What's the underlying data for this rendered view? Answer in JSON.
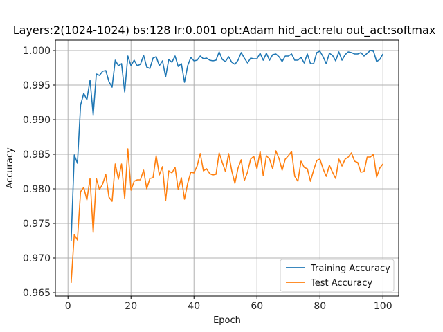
{
  "chart_data": {
    "type": "line",
    "title": "Layers:2(1024-1024) bs:128 lr:0.001 opt:Adam hid_act:relu out_act:softmax",
    "xlabel": "Epoch",
    "ylabel": "Accuracy",
    "xlim": [
      -4,
      105
    ],
    "ylim": [
      0.9645,
      1.0015
    ],
    "xticks": [
      0,
      20,
      40,
      60,
      80,
      100
    ],
    "yticks": [
      0.965,
      0.97,
      0.975,
      0.98,
      0.985,
      0.99,
      0.995,
      1.0
    ],
    "grid": true,
    "legend_position": "lower right",
    "x": [
      1,
      2,
      3,
      4,
      5,
      6,
      7,
      8,
      9,
      10,
      11,
      12,
      13,
      14,
      15,
      16,
      17,
      18,
      19,
      20,
      21,
      22,
      23,
      24,
      25,
      26,
      27,
      28,
      29,
      30,
      31,
      32,
      33,
      34,
      35,
      36,
      37,
      38,
      39,
      40,
      41,
      42,
      43,
      44,
      45,
      46,
      47,
      48,
      49,
      50,
      51,
      52,
      53,
      54,
      55,
      56,
      57,
      58,
      59,
      60,
      61,
      62,
      63,
      64,
      65,
      66,
      67,
      68,
      69,
      70,
      71,
      72,
      73,
      74,
      75,
      76,
      77,
      78,
      79,
      80,
      81,
      82,
      83,
      84,
      85,
      86,
      87,
      88,
      89,
      90,
      91,
      92,
      93,
      94,
      95,
      96,
      97,
      98,
      99,
      100
    ],
    "series": [
      {
        "name": "Training Accuracy",
        "color": "#1f77b4",
        "values": [
          0.9725,
          0.9849,
          0.9837,
          0.9921,
          0.9938,
          0.9929,
          0.9957,
          0.9907,
          0.9966,
          0.9964,
          0.997,
          0.9971,
          0.9955,
          0.9947,
          0.9986,
          0.9978,
          0.9981,
          0.994,
          0.9992,
          0.9978,
          0.9986,
          0.9978,
          0.998,
          0.9993,
          0.9976,
          0.9974,
          0.9989,
          0.9991,
          0.9978,
          0.9985,
          0.9962,
          0.9987,
          0.9983,
          0.9992,
          0.9977,
          0.9981,
          0.9954,
          0.9978,
          0.999,
          0.9985,
          0.9986,
          0.9992,
          0.9988,
          0.9989,
          0.9986,
          0.9985,
          0.9986,
          0.9998,
          0.9987,
          0.9984,
          0.9991,
          0.9983,
          0.998,
          0.9986,
          0.9997,
          0.9989,
          0.9982,
          0.9989,
          0.9988,
          0.9988,
          0.9996,
          0.9986,
          0.9996,
          0.9986,
          0.9994,
          0.9995,
          0.9991,
          0.9984,
          0.9992,
          0.9992,
          0.9995,
          0.9986,
          0.9986,
          0.999,
          0.9982,
          0.9995,
          0.9981,
          0.9981,
          0.9997,
          0.9999,
          0.9991,
          0.9981,
          0.9996,
          0.9993,
          0.9985,
          0.9998,
          0.9986,
          0.9994,
          0.9998,
          0.9997,
          0.9995,
          0.9995,
          0.9997,
          0.9992,
          0.9996,
          1.0,
          0.9999,
          0.9984,
          0.9987,
          0.9995
        ]
      },
      {
        "name": "Test Accuracy",
        "color": "#ff7f0e",
        "values": [
          0.9664,
          0.9734,
          0.9726,
          0.9796,
          0.9802,
          0.9784,
          0.9815,
          0.9737,
          0.9815,
          0.9799,
          0.9807,
          0.9821,
          0.9788,
          0.9782,
          0.9836,
          0.9814,
          0.9836,
          0.9786,
          0.9858,
          0.9798,
          0.9811,
          0.9813,
          0.9813,
          0.9827,
          0.98,
          0.9815,
          0.9816,
          0.9848,
          0.982,
          0.9832,
          0.9783,
          0.9826,
          0.9823,
          0.9831,
          0.9799,
          0.9816,
          0.9785,
          0.9808,
          0.9824,
          0.9823,
          0.9833,
          0.9851,
          0.9826,
          0.9829,
          0.9822,
          0.982,
          0.9821,
          0.9852,
          0.9838,
          0.9825,
          0.9851,
          0.9826,
          0.9808,
          0.983,
          0.9842,
          0.9812,
          0.9824,
          0.9843,
          0.9847,
          0.9829,
          0.9854,
          0.9819,
          0.9848,
          0.9843,
          0.9829,
          0.9855,
          0.9844,
          0.9827,
          0.9843,
          0.9848,
          0.9854,
          0.9818,
          0.9811,
          0.984,
          0.9831,
          0.9829,
          0.9811,
          0.9827,
          0.9841,
          0.9843,
          0.9829,
          0.9818,
          0.9834,
          0.9824,
          0.9815,
          0.9843,
          0.9833,
          0.9843,
          0.9846,
          0.9852,
          0.984,
          0.9838,
          0.9824,
          0.9825,
          0.9846,
          0.9846,
          0.985,
          0.9817,
          0.983,
          0.9836
        ]
      }
    ]
  }
}
